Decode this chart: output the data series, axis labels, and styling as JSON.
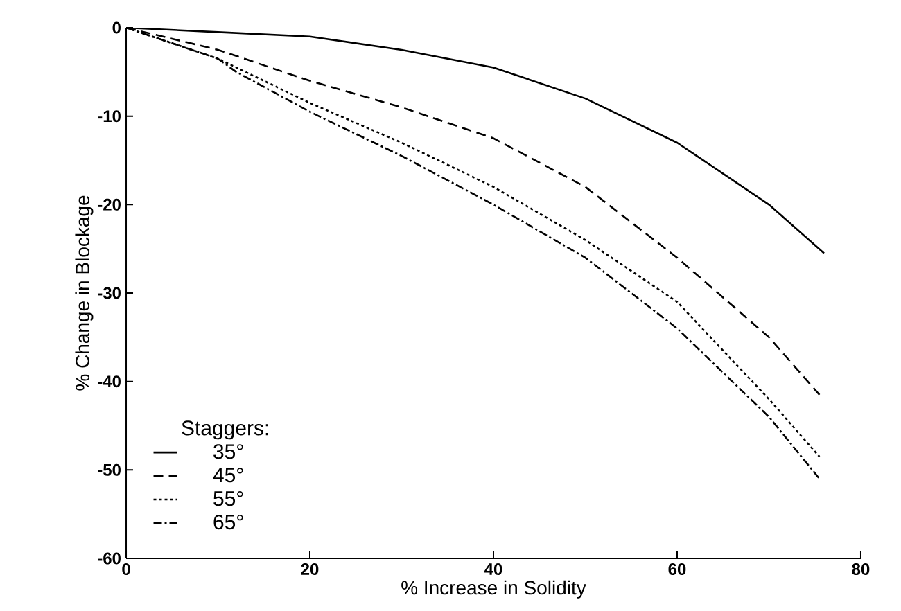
{
  "chart_data": {
    "type": "line",
    "xlabel": "% Increase in Solidity",
    "ylabel": "% Change in Blockage",
    "legend_title": "Staggers:",
    "legend": "bottom left",
    "grid": false,
    "marker": "none",
    "xlim": [
      0,
      80
    ],
    "ylim": [
      -60,
      0
    ],
    "xticks": [
      0,
      20,
      40,
      60,
      80
    ],
    "yticks": [
      -60,
      -50,
      -40,
      -30,
      -20,
      -10,
      0
    ],
    "series": [
      {
        "name": "35°",
        "color": "#000000",
        "line_style": "solid",
        "x": [
          0,
          10,
          20,
          30,
          40,
          50,
          60,
          70,
          76
        ],
        "values": [
          0,
          -0.5,
          -1,
          -2.5,
          -4.5,
          -8,
          -13,
          -20,
          -25.5
        ]
      },
      {
        "name": "45°",
        "color": "#000000",
        "line_style": "dashed",
        "x": [
          0,
          10,
          20,
          30,
          40,
          50,
          60,
          70,
          75.5
        ],
        "values": [
          0,
          -2.5,
          -6,
          -9,
          -12.5,
          -18,
          -26,
          -35,
          -41.5
        ]
      },
      {
        "name": "55°",
        "color": "#000000",
        "line_style": "dotted",
        "x": [
          0,
          10,
          20,
          30,
          40,
          50,
          60,
          70,
          75.5
        ],
        "values": [
          0,
          -3.5,
          -8.5,
          -13,
          -18,
          -24,
          -31,
          -42,
          -48.5
        ]
      },
      {
        "name": "65°",
        "color": "#000000",
        "line_style": "dashdot",
        "x": [
          0,
          10,
          12,
          20,
          30,
          40,
          50,
          60,
          70,
          75.5
        ],
        "values": [
          0,
          -3.5,
          -5,
          -9.5,
          -14.5,
          -20,
          -26,
          -34,
          -44,
          -51
        ]
      }
    ]
  }
}
